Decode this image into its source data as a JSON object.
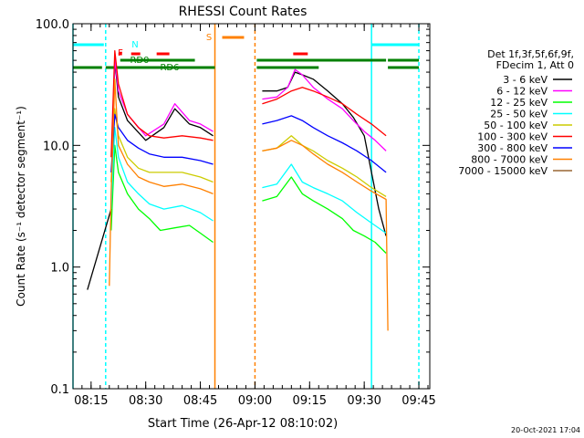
{
  "chart_data": {
    "type": "line",
    "title": "RHESSI Count Rates",
    "xlabel": "Start Time (26-Apr-12 08:10:02)",
    "ylabel": "Count Rate (s⁻¹ detector segment⁻¹)",
    "x_scale": "time",
    "y_scale": "log",
    "xlim": [
      "08:10:02",
      "09:48:00"
    ],
    "ylim": [
      0.1,
      100.0
    ],
    "x_ticks": [
      "08:15",
      "08:30",
      "08:45",
      "09:00",
      "09:15",
      "09:30",
      "09:45"
    ],
    "y_ticks": [
      {
        "value": 0.1,
        "label": "0.1"
      },
      {
        "value": 1.0,
        "label": "1.0"
      },
      {
        "value": 10.0,
        "label": "10.0"
      },
      {
        "value": 100.0,
        "label": "100.0"
      }
    ],
    "legend_header": [
      "Det 1f,3f,5f,6f,9f,",
      "FDecim 1, Att 0"
    ],
    "legend_position": "right",
    "timestamp": "20-Oct-2021 17:04",
    "series": [
      {
        "name": "3 - 6 keV",
        "color": "#000000",
        "segments": [
          {
            "x": [
              "08:14:00",
              "08:20:30",
              "08:21:30",
              "08:22:30",
              "08:25:00",
              "08:30:00",
              "08:35:00",
              "08:38:00",
              "08:42:00",
              "08:45:00",
              "08:48:30"
            ],
            "y": [
              0.65,
              3,
              50,
              25,
              16,
              11,
              14,
              20,
              15,
              14,
              12
            ]
          },
          {
            "x": [
              "09:02:00",
              "09:06:00",
              "09:09:00",
              "09:11:00",
              "09:13:00",
              "09:16:00",
              "09:20:00",
              "09:24:00",
              "09:27:00",
              "09:30:00",
              "09:32:00",
              "09:34:00",
              "09:36:00"
            ],
            "y": [
              28,
              28,
              30,
              40,
              38,
              35,
              28,
              22,
              17,
              12,
              6,
              3,
              1.8
            ]
          }
        ]
      },
      {
        "name": "6 - 12 keV",
        "color": "#ff00ff",
        "segments": [
          {
            "x": [
              "08:20:30",
              "08:21:30",
              "08:22:30",
              "08:25:00",
              "08:30:00",
              "08:35:00",
              "08:38:00",
              "08:42:00",
              "08:45:00",
              "08:48:30"
            ],
            "y": [
              3,
              52,
              28,
              18,
              12,
              15,
              22,
              16,
              15,
              13
            ]
          },
          {
            "x": [
              "09:02:00",
              "09:06:00",
              "09:09:00",
              "09:11:00",
              "09:13:00",
              "09:16:00",
              "09:20:00",
              "09:24:00",
              "09:27:00",
              "09:30:00",
              "09:33:00",
              "09:36:00"
            ],
            "y": [
              24,
              25,
              30,
              42,
              38,
              30,
              24,
              20,
              16,
              13,
              11,
              9
            ]
          }
        ]
      },
      {
        "name": "12 - 25 keV",
        "color": "#00ff00",
        "segments": [
          {
            "x": [
              "08:20:30",
              "08:21:30",
              "08:22:30",
              "08:25:00",
              "08:28:00",
              "08:31:00",
              "08:34:00",
              "08:38:00",
              "08:42:00",
              "08:45:00",
              "08:48:30"
            ],
            "y": [
              2,
              10,
              6,
              4,
              3,
              2.5,
              2,
              2.1,
              2.2,
              1.9,
              1.6
            ]
          },
          {
            "x": [
              "09:02:00",
              "09:06:00",
              "09:10:00",
              "09:13:00",
              "09:16:00",
              "09:20:00",
              "09:24:00",
              "09:27:00",
              "09:30:00",
              "09:33:00",
              "09:36:00"
            ],
            "y": [
              3.5,
              3.8,
              5.5,
              4,
              3.5,
              3,
              2.5,
              2,
              1.8,
              1.6,
              1.3
            ]
          }
        ]
      },
      {
        "name": "25 - 50 keV",
        "color": "#00ffff",
        "segments": [
          {
            "x": [
              "08:20:30",
              "08:21:30",
              "08:22:30",
              "08:25:00",
              "08:28:00",
              "08:31:00",
              "08:35:00",
              "08:40:00",
              "08:45:00",
              "08:48:30"
            ],
            "y": [
              3,
              14,
              8,
              5,
              4,
              3.3,
              3,
              3.2,
              2.8,
              2.4
            ]
          },
          {
            "x": [
              "09:02:00",
              "09:06:00",
              "09:10:00",
              "09:13:00",
              "09:16:00",
              "09:20:00",
              "09:24:00",
              "09:28:00",
              "09:32:00",
              "09:36:00"
            ],
            "y": [
              4.5,
              4.8,
              7,
              5,
              4.5,
              4,
              3.5,
              2.8,
              2.3,
              1.9
            ]
          }
        ]
      },
      {
        "name": "50 - 100 keV",
        "color": "#cccc00",
        "segments": [
          {
            "x": [
              "08:20:30",
              "08:21:30",
              "08:22:30",
              "08:25:00",
              "08:28:00",
              "08:31:00",
              "08:35:00",
              "08:40:00",
              "08:45:00",
              "08:48:30"
            ],
            "y": [
              5,
              20,
              12,
              8,
              6.5,
              6,
              6,
              6,
              5.5,
              5
            ]
          },
          {
            "x": [
              "09:02:00",
              "09:06:00",
              "09:10:00",
              "09:13:00",
              "09:16:00",
              "09:20:00",
              "09:24:00",
              "09:28:00",
              "09:32:00",
              "09:36:00"
            ],
            "y": [
              9,
              9.5,
              12,
              10,
              9,
              7.5,
              6.5,
              5.5,
              4.5,
              3.8
            ]
          }
        ]
      },
      {
        "name": "100 - 300 keV",
        "color": "#ff0000",
        "segments": [
          {
            "x": [
              "08:20:30",
              "08:21:30",
              "08:22:30",
              "08:25:00",
              "08:28:00",
              "08:31:00",
              "08:35:00",
              "08:40:00",
              "08:45:00",
              "08:48:30"
            ],
            "y": [
              8,
              60,
              32,
              18,
              14,
              12,
              11.5,
              12,
              11.5,
              11
            ]
          },
          {
            "x": [
              "09:02:00",
              "09:06:00",
              "09:10:00",
              "09:13:00",
              "09:16:00",
              "09:20:00",
              "09:24:00",
              "09:28:00",
              "09:32:00",
              "09:36:00"
            ],
            "y": [
              22,
              24,
              28,
              30,
              28,
              25,
              22,
              18,
              15,
              12
            ]
          }
        ]
      },
      {
        "name": "300 - 800 keV",
        "color": "#0000ff",
        "segments": [
          {
            "x": [
              "08:20:30",
              "08:21:30",
              "08:22:30",
              "08:25:00",
              "08:28:00",
              "08:31:00",
              "08:35:00",
              "08:40:00",
              "08:45:00",
              "08:48:30"
            ],
            "y": [
              6,
              18,
              14,
              11,
              9.5,
              8.5,
              8,
              8,
              7.5,
              7
            ]
          },
          {
            "x": [
              "09:02:00",
              "09:06:00",
              "09:10:00",
              "09:13:00",
              "09:16:00",
              "09:20:00",
              "09:24:00",
              "09:28:00",
              "09:32:00",
              "09:36:00"
            ],
            "y": [
              15,
              16,
              17.5,
              16,
              14,
              12,
              10.5,
              9,
              7.5,
              6
            ]
          }
        ]
      },
      {
        "name": "800 - 7000 keV",
        "color": "#ff8000",
        "segments": [
          {
            "x": [
              "08:20:00",
              "08:20:30",
              "08:21:30",
              "08:22:30",
              "08:25:00",
              "08:28:00",
              "08:31:00",
              "08:35:00",
              "08:40:00",
              "08:45:00",
              "08:48:30"
            ],
            "y": [
              0.7,
              4,
              35,
              10,
              7,
              5.5,
              5,
              4.6,
              4.8,
              4.4,
              4
            ]
          },
          {
            "x": [
              "09:02:00",
              "09:06:00",
              "09:10:00",
              "09:13:00",
              "09:16:00",
              "09:20:00",
              "09:24:00",
              "09:28:00",
              "09:32:00",
              "09:36:00",
              "09:36:30"
            ],
            "y": [
              9,
              9.5,
              11,
              10,
              8.5,
              7,
              6,
              5,
              4.2,
              3.6,
              0.3
            ]
          }
        ]
      },
      {
        "name": "7000 - 15000 keV",
        "color": "#996633",
        "segments": []
      }
    ],
    "flags": [
      {
        "label": "N",
        "color": "#00ffff",
        "segments": [
          [
            "08:10:02",
            "08:18:30"
          ],
          [
            "09:32:00",
            "09:45:00"
          ]
        ]
      },
      {
        "label": "F",
        "color": "#ff0000",
        "segments": [
          [
            "08:22:30",
            "08:23:30"
          ],
          [
            "08:26:00",
            "08:28:30"
          ],
          [
            "08:33:00",
            "08:36:30"
          ],
          [
            "09:10:30",
            "09:14:30"
          ]
        ]
      },
      {
        "label": "RD0",
        "color": "#008000",
        "segments": [
          [
            "08:23:00",
            "08:43:30"
          ],
          [
            "09:00:30",
            "09:36:00"
          ],
          [
            "09:36:30",
            "09:45:00"
          ]
        ]
      },
      {
        "label": "RD6",
        "color": "#008000",
        "segments": [
          [
            "08:10:02",
            "08:18:00"
          ],
          [
            "08:19:00",
            "08:49:00"
          ],
          [
            "09:00:30",
            "09:17:30"
          ],
          [
            "09:36:30",
            "09:45:00"
          ]
        ]
      },
      {
        "label": "S",
        "color": "#ff8000",
        "segments": [
          [
            "08:51:00",
            "08:57:00"
          ]
        ]
      }
    ],
    "vlines": [
      {
        "x": "08:10:02",
        "color": "#00ffff",
        "style": "solid"
      },
      {
        "x": "08:19:00",
        "color": "#00ffff",
        "style": "dashed"
      },
      {
        "x": "08:49:00",
        "color": "#ff8000",
        "style": "solid"
      },
      {
        "x": "09:00:00",
        "color": "#ff8000",
        "style": "dashed"
      },
      {
        "x": "09:32:00",
        "color": "#00ffff",
        "style": "solid"
      },
      {
        "x": "09:45:00",
        "color": "#00ffff",
        "style": "dashed"
      }
    ]
  }
}
